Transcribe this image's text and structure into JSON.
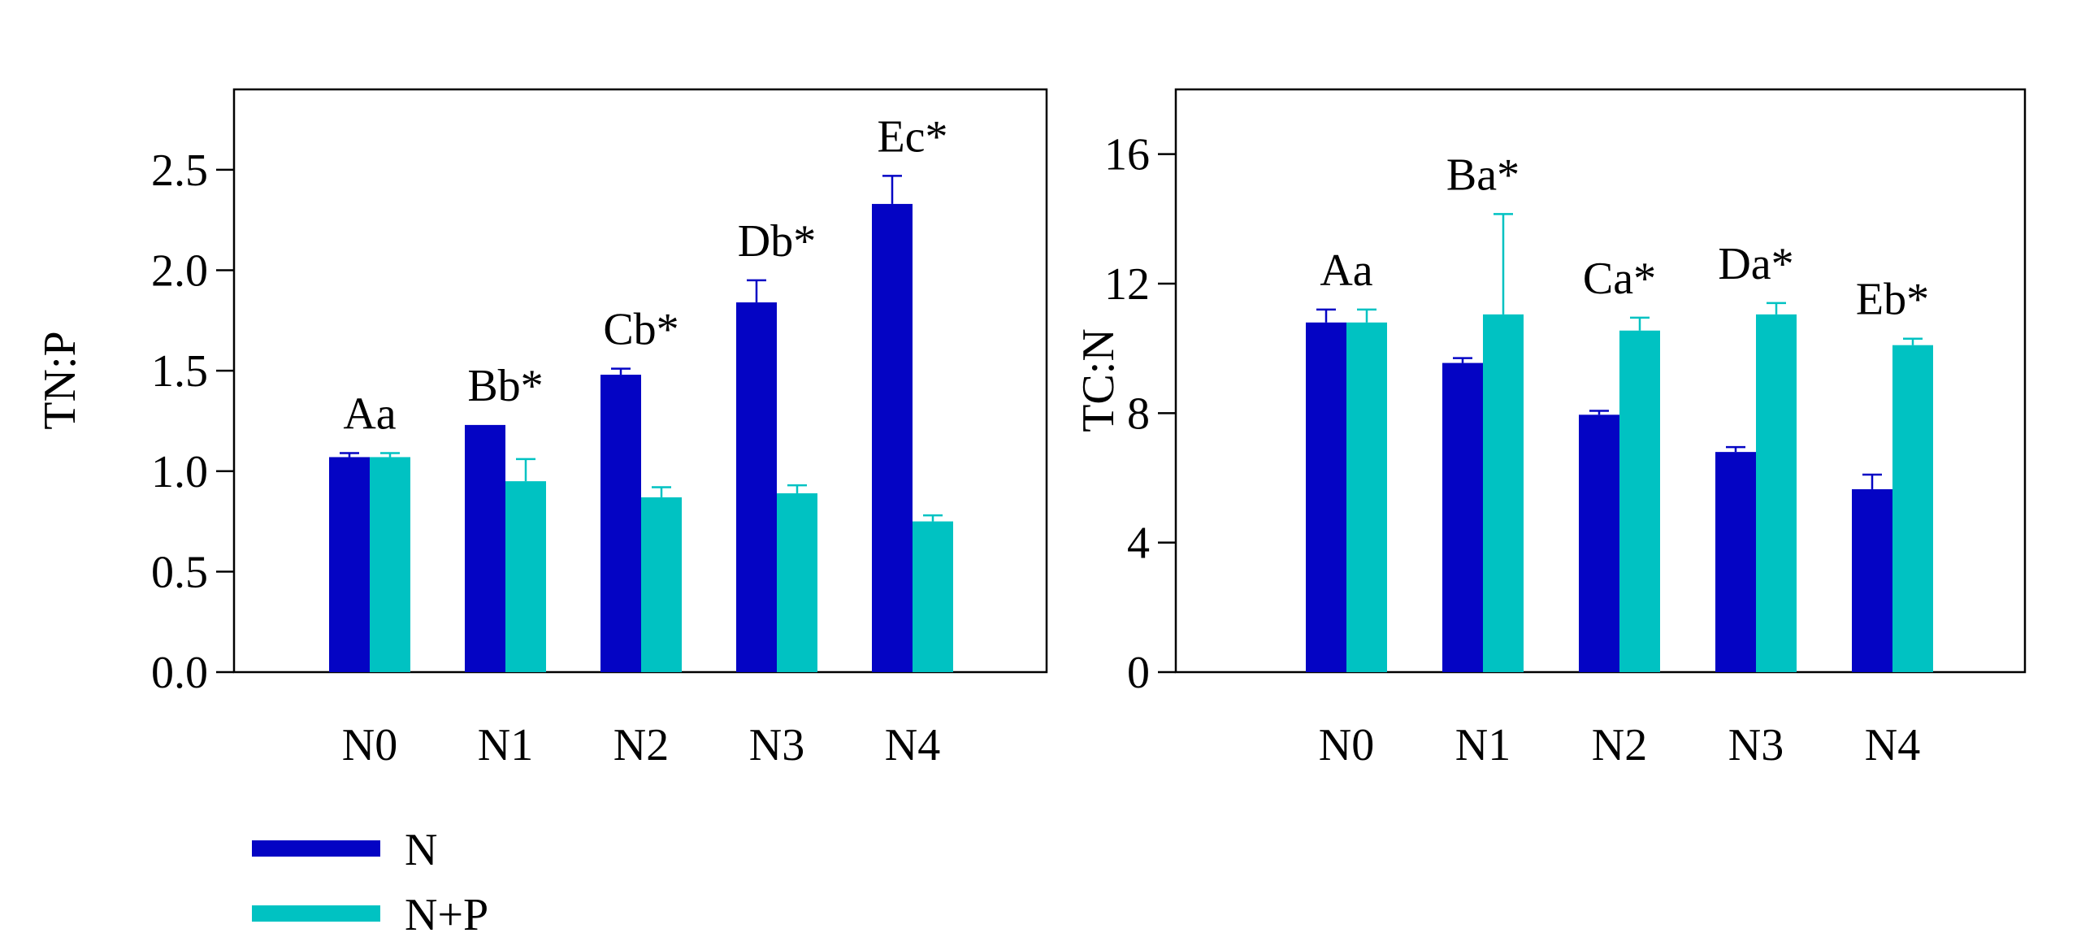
{
  "colors": {
    "series_n": "#0404c4",
    "series_np": "#00c2c2",
    "axis": "#000000",
    "background": "#ffffff"
  },
  "legend": {
    "items": [
      {
        "label": "N",
        "color": "#0404c4"
      },
      {
        "label": "N+P",
        "color": "#00c2c2"
      }
    ]
  },
  "chart_data": [
    {
      "type": "bar",
      "title": "",
      "xlabel": "",
      "ylabel": "TN:P",
      "ylim": [
        0,
        2.9
      ],
      "yticks": [
        0.0,
        0.5,
        1.0,
        1.5,
        2.0,
        2.5
      ],
      "ytick_labels": [
        "0.0",
        "0.5",
        "1.0",
        "1.5",
        "2.0",
        "2.5"
      ],
      "categories": [
        "N0",
        "N1",
        "N2",
        "N3",
        "N4"
      ],
      "series": [
        {
          "name": "N",
          "values": [
            1.07,
            1.23,
            1.48,
            1.84,
            2.33
          ],
          "errors": [
            0.02,
            0.0,
            0.03,
            0.11,
            0.14
          ]
        },
        {
          "name": "N+P",
          "values": [
            1.07,
            0.95,
            0.87,
            0.89,
            0.75
          ],
          "errors": [
            0.02,
            0.11,
            0.05,
            0.04,
            0.03
          ]
        }
      ],
      "annotations": [
        "Aa",
        "Bb*",
        "Cb*",
        "Db*",
        "Ec*"
      ],
      "grid": false,
      "legend": "below-left"
    },
    {
      "type": "bar",
      "title": "",
      "xlabel": "",
      "ylabel": "TC:N",
      "ylim": [
        0,
        18
      ],
      "yticks": [
        0,
        4,
        8,
        12,
        16
      ],
      "ytick_labels": [
        "0",
        "4",
        "8",
        "12",
        "16"
      ],
      "categories": [
        "N0",
        "N1",
        "N2",
        "N3",
        "N4"
      ],
      "series": [
        {
          "name": "N",
          "values": [
            10.8,
            9.55,
            7.95,
            6.8,
            5.65
          ],
          "errors": [
            0.4,
            0.15,
            0.12,
            0.15,
            0.45
          ]
        },
        {
          "name": "N+P",
          "values": [
            10.8,
            11.05,
            10.55,
            11.05,
            10.1
          ],
          "errors": [
            0.4,
            3.1,
            0.4,
            0.35,
            0.2
          ]
        }
      ],
      "annotations": [
        "Aa",
        "Ba*",
        "Ca*",
        "Da*",
        "Eb*"
      ],
      "grid": false,
      "legend": "none"
    }
  ]
}
